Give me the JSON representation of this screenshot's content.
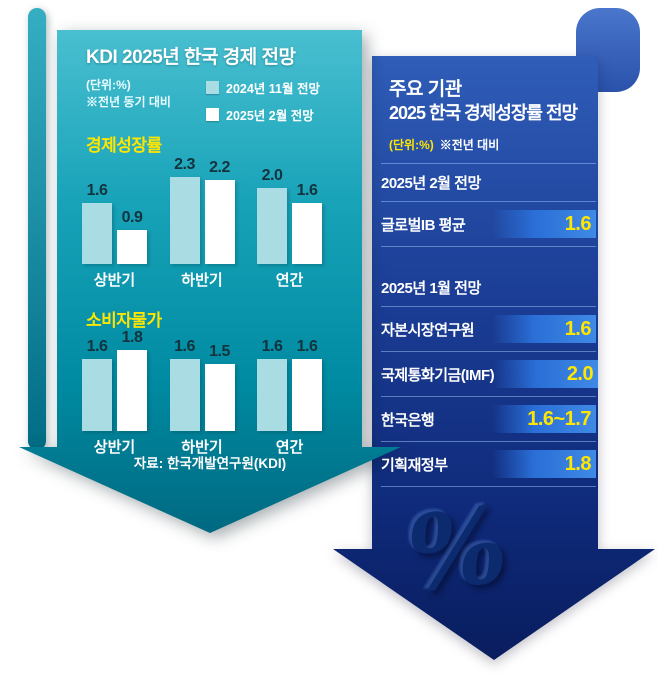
{
  "colors": {
    "teal_arrow": "#0e9cb2",
    "blue_arrow": "#16338c",
    "accent_yellow": "#ffe600",
    "bar_series_2024nov": "#a9dde3",
    "bar_series_2025feb": "#ffffff",
    "value_highlight": "#2f7ce0"
  },
  "left_panel": {
    "title": "KDI 2025년 한국 경제 전망",
    "unit": "(단위:%)",
    "note": "※전년 동기 대비",
    "legend": [
      {
        "label": "2024년 11월 전망",
        "color": "#a9dde3"
      },
      {
        "label": "2025년 2월 전망",
        "color": "#ffffff"
      }
    ],
    "source": "자료: 한국개발연구원(KDI)"
  },
  "chart_data": [
    {
      "type": "bar",
      "title": "경제성장률",
      "unit": "%",
      "note": "전년 동기 대비",
      "categories": [
        "상반기",
        "하반기",
        "연간"
      ],
      "series": [
        {
          "name": "2024년 11월 전망",
          "values": [
            1.6,
            2.3,
            2.0
          ]
        },
        {
          "name": "2025년 2월 전망",
          "values": [
            0.9,
            2.2,
            1.6
          ]
        }
      ],
      "ylim": [
        0,
        2.5
      ],
      "grid": false,
      "legend_position": "top-right"
    },
    {
      "type": "bar",
      "title": "소비자물가",
      "unit": "%",
      "note": "전년 동기 대비",
      "categories": [
        "상반기",
        "하반기",
        "연간"
      ],
      "series": [
        {
          "name": "2024년 11월 전망",
          "values": [
            1.6,
            1.6,
            1.6
          ]
        },
        {
          "name": "2025년 2월 전망",
          "values": [
            1.8,
            1.5,
            1.6
          ]
        }
      ],
      "ylim": [
        0,
        2.0
      ],
      "grid": false,
      "legend_position": "top-right"
    }
  ],
  "right_panel": {
    "title_line1": "주요 기관",
    "title_line2": "2025 한국 경제성장률 전망",
    "unit": "(단위:%)",
    "note": "※전년 대비",
    "sections": [
      {
        "header": "2025년 2월 전망",
        "rows": [
          {
            "label": "글로벌IB 평균",
            "value": "1.6"
          }
        ]
      },
      {
        "header": "2025년 1월 전망",
        "rows": [
          {
            "label": "자본시장연구원",
            "value": "1.6"
          },
          {
            "label": "국제통화기금(IMF)",
            "value": "2.0"
          },
          {
            "label": "한국은행",
            "value": "1.6~1.7"
          },
          {
            "label": "기획재정부",
            "value": "1.8"
          }
        ]
      }
    ],
    "percent_symbol": "%"
  }
}
